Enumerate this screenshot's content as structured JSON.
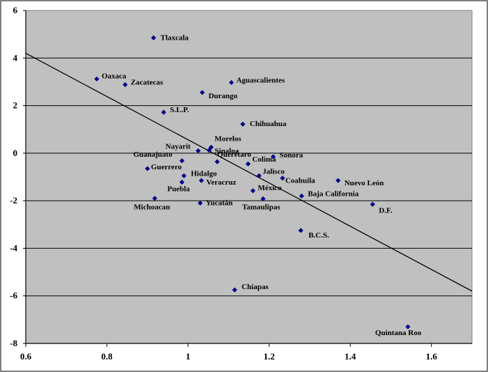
{
  "chart_data": {
    "type": "scatter",
    "title": "",
    "xlabel": "",
    "ylabel": "",
    "xlim": [
      0.6,
      1.7
    ],
    "ylim": [
      -8,
      6
    ],
    "xticks": [
      "0.6",
      "0.8",
      "1",
      "1.2",
      "1.4",
      "1.6"
    ],
    "yticks": [
      "6",
      "4",
      "2",
      "0",
      "-2",
      "-4",
      "-6",
      "-8"
    ],
    "grid": "horizontal",
    "legend": "none",
    "colors": {
      "plot_bg": "#c0c0c0",
      "marker": "#00008b",
      "grid": "#000000",
      "trendline": "#000000"
    },
    "trendline": {
      "x": [
        0.6,
        1.7
      ],
      "y": [
        4.2,
        -5.8
      ]
    },
    "points": [
      {
        "label": "Tlaxcala",
        "x": 0.915,
        "y": 4.85
      },
      {
        "label": "Oaxaca",
        "x": 0.775,
        "y": 3.12
      },
      {
        "label": "Zacatecas",
        "x": 0.845,
        "y": 2.88
      },
      {
        "label": "Aguascalientes",
        "x": 1.107,
        "y": 2.97
      },
      {
        "label": "Durango",
        "x": 1.035,
        "y": 2.55
      },
      {
        "label": "S.L.P.",
        "x": 0.94,
        "y": 1.72
      },
      {
        "label": "Chihuahua",
        "x": 1.135,
        "y": 1.22
      },
      {
        "label": "Morelos",
        "x": 1.057,
        "y": 0.25
      },
      {
        "label": "Nayarit",
        "x": 1.025,
        "y": 0.1
      },
      {
        "label": "Sinaloa",
        "x": 1.052,
        "y": 0.12
      },
      {
        "label": "Guanajuato",
        "x": 0.985,
        "y": -0.32
      },
      {
        "label": "Querétaro",
        "x": 1.072,
        "y": -0.36
      },
      {
        "label": "Colima",
        "x": 1.148,
        "y": -0.45
      },
      {
        "label": "Sonora",
        "x": 1.21,
        "y": -0.15
      },
      {
        "label": "Guerrero",
        "x": 0.9,
        "y": -0.65
      },
      {
        "label": "Hidalgo",
        "x": 0.99,
        "y": -0.95
      },
      {
        "label": "Jalisco",
        "x": 1.175,
        "y": -0.95
      },
      {
        "label": "Coahuila",
        "x": 1.233,
        "y": -1.05
      },
      {
        "label": "Puebla",
        "x": 0.985,
        "y": -1.22
      },
      {
        "label": "Veracruz",
        "x": 1.033,
        "y": -1.15
      },
      {
        "label": "Nuevo León",
        "x": 1.37,
        "y": -1.15
      },
      {
        "label": "México",
        "x": 1.16,
        "y": -1.58
      },
      {
        "label": "Baja California",
        "x": 1.28,
        "y": -1.8
      },
      {
        "label": "Tamaulipas",
        "x": 1.185,
        "y": -1.92
      },
      {
        "label": "Michoacan",
        "x": 0.918,
        "y": -1.9
      },
      {
        "label": "Yucatán",
        "x": 1.03,
        "y": -2.1
      },
      {
        "label": "D.F.",
        "x": 1.455,
        "y": -2.15
      },
      {
        "label": "B.C.S.",
        "x": 1.278,
        "y": -3.25
      },
      {
        "label": "Chiapas",
        "x": 1.115,
        "y": -5.75
      },
      {
        "label": "Quintana Roo",
        "x": 1.542,
        "y": -7.3
      }
    ]
  }
}
